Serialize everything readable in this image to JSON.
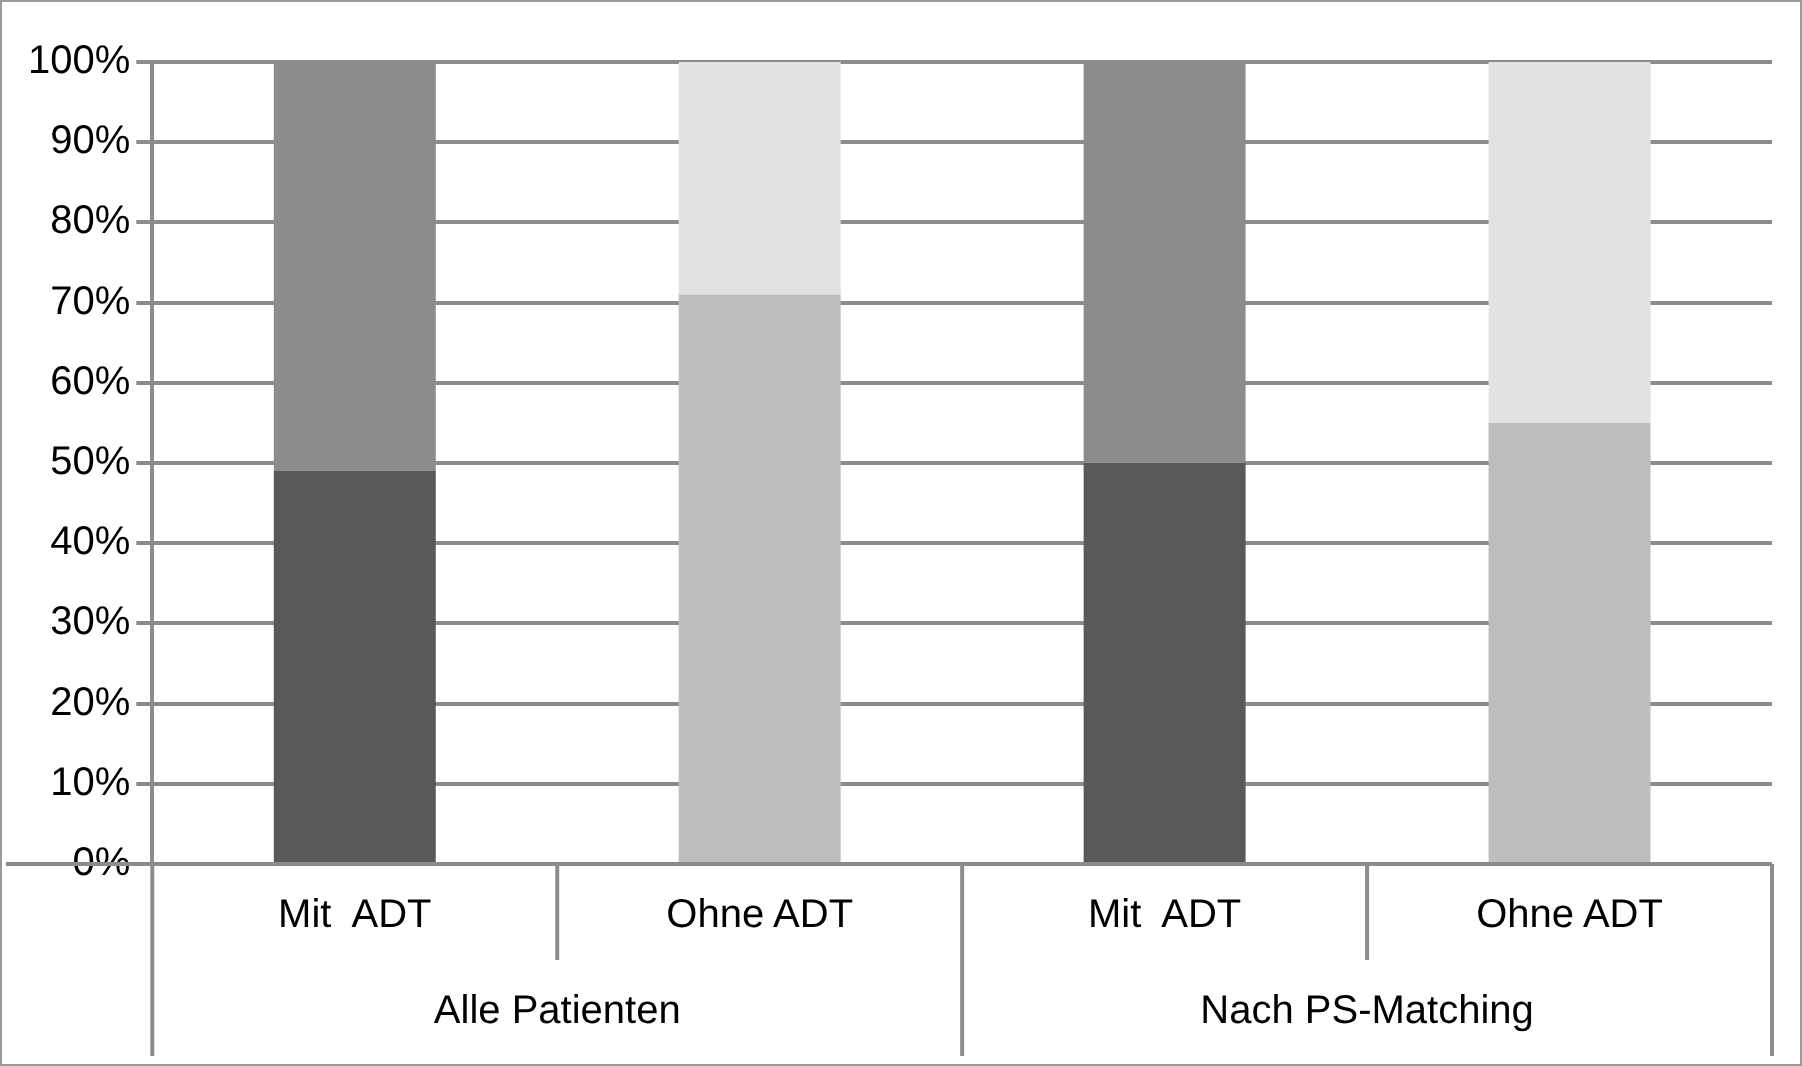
{
  "chart_data": {
    "type": "bar",
    "stacked": true,
    "categories": [
      "Mit  ADT",
      "Ohne ADT",
      "Mit  ADT",
      "Ohne ADT"
    ],
    "series": [
      {
        "colors": [
          "#595959",
          "#bdbdbd",
          "#595959",
          "#bdbdbd"
        ],
        "values": [
          49,
          71,
          50,
          55
        ]
      },
      {
        "colors": [
          "#8c8c8c",
          "#e2e2e2",
          "#8c8c8c",
          "#e2e2e2"
        ],
        "values": [
          51,
          29,
          50,
          45
        ]
      }
    ],
    "annotations": [
      "Alle Patienten",
      "Nach PS-Matching"
    ],
    "ylim": [
      0,
      100
    ],
    "yticks": [
      {
        "value": 0,
        "label": "0%"
      },
      {
        "value": 10,
        "label": "10%"
      },
      {
        "value": 20,
        "label": "20%"
      },
      {
        "value": 30,
        "label": "30%"
      },
      {
        "value": 40,
        "label": "40%"
      },
      {
        "value": 50,
        "label": "50%"
      },
      {
        "value": 60,
        "label": "60%"
      },
      {
        "value": 70,
        "label": "70%"
      },
      {
        "value": 80,
        "label": "80%"
      },
      {
        "value": 90,
        "label": "90%"
      },
      {
        "value": 100,
        "label": "100%"
      }
    ],
    "grid": "y",
    "legend": false
  }
}
